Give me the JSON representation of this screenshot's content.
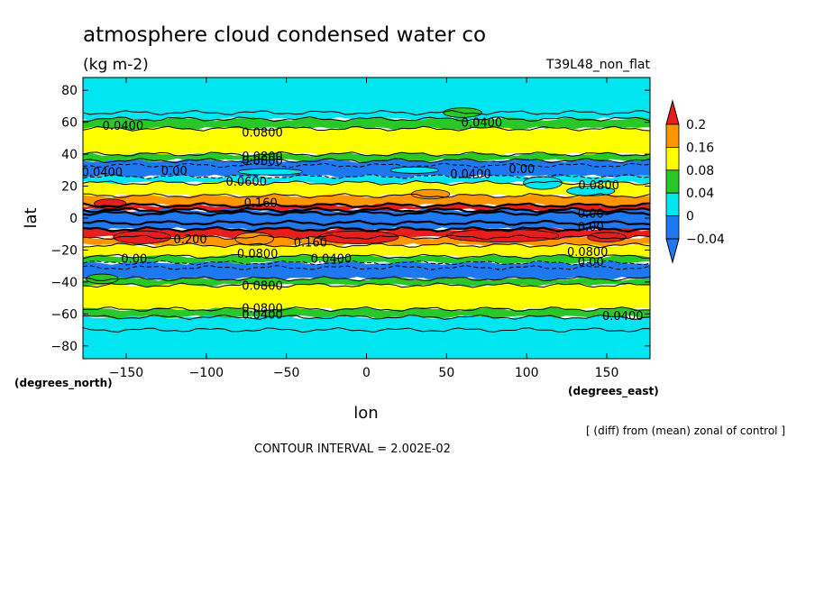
{
  "header": {
    "title": "atmosphere cloud condensed water co",
    "units": "(kg m-2)",
    "experiment": "T39L48_non_flat"
  },
  "footer": {
    "xunits": "(degrees_east)",
    "yunits": "(degrees_north)",
    "note": "[ (diff) from (mean) zonal of control ]",
    "contour_interval": "CONTOUR INTERVAL = 2.002E-02"
  },
  "colors": {
    "below_min": "#1e78f0",
    "c_m004_0": "#1e78f0",
    "c_0_004": "#00e6f0",
    "c_004_008": "#28c828",
    "c_008_016": "#ffff00",
    "c_016_02": "#ff9600",
    "above_max": "#e61e1e"
  },
  "chart_data": {
    "type": "heatmap",
    "title": "atmosphere cloud condensed water co",
    "xlabel": "lon",
    "ylabel": "lat",
    "xlim": [
      -177,
      177
    ],
    "ylim": [
      -88,
      88
    ],
    "xticks": [
      -150,
      -100,
      -50,
      0,
      50,
      100,
      150
    ],
    "yticks": [
      -80,
      -60,
      -40,
      -20,
      0,
      20,
      40,
      60,
      80
    ],
    "colorbar": {
      "levels": [
        -0.04,
        0,
        0.04,
        0.08,
        0.16,
        0.2
      ],
      "level_labels": [
        "-0.04",
        "0",
        "0.04",
        "0.08",
        "0.16",
        "0.2"
      ],
      "colors": [
        "#1e78f0",
        "#1e78f0",
        "#00e6f0",
        "#28c828",
        "#ffff00",
        "#ff9600",
        "#e61e1e"
      ]
    },
    "bands": [
      {
        "lat_from": 62,
        "lat_to": 88,
        "color": "#00e6f0"
      },
      {
        "lat_from": 56,
        "lat_to": 62,
        "color": "#28c828"
      },
      {
        "lat_from": 40,
        "lat_to": 56,
        "color": "#ffff00"
      },
      {
        "lat_from": 36,
        "lat_to": 40,
        "color": "#28c828"
      },
      {
        "lat_from": 26,
        "lat_to": 36,
        "color": "#1e78f0"
      },
      {
        "lat_from": 22,
        "lat_to": 26,
        "color": "#00e6f0"
      },
      {
        "lat_from": 14,
        "lat_to": 22,
        "color": "#ffff00"
      },
      {
        "lat_from": 8,
        "lat_to": 14,
        "color": "#ff9600"
      },
      {
        "lat_from": 5,
        "lat_to": 8,
        "color": "#e61e1e"
      },
      {
        "lat_from": -7,
        "lat_to": 5,
        "color": "#1e78f0"
      },
      {
        "lat_from": -12,
        "lat_to": -7,
        "color": "#e61e1e"
      },
      {
        "lat_from": -17,
        "lat_to": -12,
        "color": "#ff9600"
      },
      {
        "lat_from": -24,
        "lat_to": -17,
        "color": "#ffff00"
      },
      {
        "lat_from": -28,
        "lat_to": -24,
        "color": "#28c828"
      },
      {
        "lat_from": -38,
        "lat_to": -28,
        "color": "#1e78f0"
      },
      {
        "lat_from": -42,
        "lat_to": -38,
        "color": "#28c828"
      },
      {
        "lat_from": -57,
        "lat_to": -42,
        "color": "#ffff00"
      },
      {
        "lat_from": -62,
        "lat_to": -57,
        "color": "#28c828"
      },
      {
        "lat_from": -88,
        "lat_to": -62,
        "color": "#00e6f0"
      }
    ],
    "patches": [
      {
        "lon": -140,
        "lat": -12,
        "rx": 18,
        "ry": 4,
        "color": "#e61e1e"
      },
      {
        "lon": -70,
        "lat": -13,
        "rx": 12,
        "ry": 4,
        "color": "#ff9600"
      },
      {
        "lon": -5,
        "lat": -12,
        "rx": 25,
        "ry": 4,
        "color": "#e61e1e"
      },
      {
        "lon": 85,
        "lat": -11,
        "rx": 35,
        "ry": 4,
        "color": "#e61e1e"
      },
      {
        "lon": 150,
        "lat": -12,
        "rx": 12,
        "ry": 3,
        "color": "#e61e1e"
      },
      {
        "lon": -160,
        "lat": 9,
        "rx": 10,
        "ry": 3,
        "color": "#e61e1e"
      },
      {
        "lon": 40,
        "lat": 15,
        "rx": 12,
        "ry": 3,
        "color": "#ff9600"
      },
      {
        "lon": 110,
        "lat": 22,
        "rx": 12,
        "ry": 4,
        "color": "#00e6f0"
      },
      {
        "lon": 140,
        "lat": 17,
        "rx": 15,
        "ry": 3,
        "color": "#00e6f0"
      },
      {
        "lon": 60,
        "lat": 66,
        "rx": 12,
        "ry": 3,
        "color": "#28c828"
      },
      {
        "lon": -165,
        "lat": -38,
        "rx": 10,
        "ry": 3,
        "color": "#28c828"
      },
      {
        "lon": 30,
        "lat": 30,
        "rx": 15,
        "ry": 2,
        "color": "#00e6f0"
      },
      {
        "lon": -60,
        "lat": 29,
        "rx": 20,
        "ry": 2,
        "color": "#00e6f0"
      }
    ],
    "contour_lats": [
      66,
      62,
      56,
      40,
      36,
      33,
      26,
      22,
      14,
      8,
      5,
      3,
      -3,
      -7,
      -12,
      -17,
      -24,
      -28,
      -31,
      -38,
      -42,
      -57,
      -62,
      -70
    ],
    "annotations": [
      {
        "text": "0.0400",
        "lon": -152,
        "lat": 58
      },
      {
        "text": "0.0400",
        "lon": 72,
        "lat": 60
      },
      {
        "text": "0.0800",
        "lon": -65,
        "lat": 54
      },
      {
        "text": "0.0800",
        "lon": -65,
        "lat": 39
      },
      {
        "text": "0.0600",
        "lon": -65,
        "lat": 36
      },
      {
        "text": "0.0400",
        "lon": -165,
        "lat": 29
      },
      {
        "text": "0.00",
        "lon": -120,
        "lat": 30
      },
      {
        "text": "0.0400",
        "lon": 65,
        "lat": 28
      },
      {
        "text": "0.00",
        "lon": 97,
        "lat": 31
      },
      {
        "text": "0.0800",
        "lon": 145,
        "lat": 21
      },
      {
        "text": "0.0600",
        "lon": -75,
        "lat": 23
      },
      {
        "text": "0.160",
        "lon": -66,
        "lat": 10
      },
      {
        "text": "0.00",
        "lon": 140,
        "lat": 3
      },
      {
        "text": "0.00",
        "lon": 140,
        "lat": -5
      },
      {
        "text": "0.200",
        "lon": -110,
        "lat": -13
      },
      {
        "text": "0.160",
        "lon": -35,
        "lat": -15
      },
      {
        "text": "0.0800",
        "lon": -68,
        "lat": -22
      },
      {
        "text": "0.0800",
        "lon": 138,
        "lat": -21
      },
      {
        "text": "0.00",
        "lon": -145,
        "lat": -25
      },
      {
        "text": "0.0400",
        "lon": -22,
        "lat": -25
      },
      {
        "text": "0.00",
        "lon": 140,
        "lat": -27
      },
      {
        "text": "0.0800",
        "lon": -65,
        "lat": -42
      },
      {
        "text": "0.0800",
        "lon": -65,
        "lat": -56
      },
      {
        "text": "0.0400",
        "lon": -65,
        "lat": -60
      },
      {
        "text": "0.0400",
        "lon": 160,
        "lat": -61
      }
    ]
  }
}
